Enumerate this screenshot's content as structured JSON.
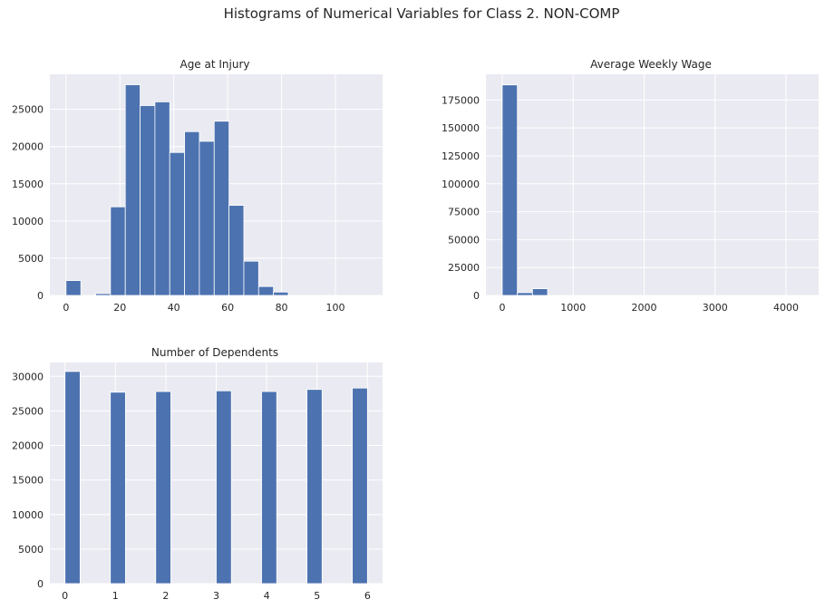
{
  "title": "Histograms of Numerical Variables for Class 2. NON-COMP",
  "colors": {
    "bar": "#4c72b0",
    "background": "#eaeaf2",
    "grid": "#ffffff"
  },
  "chart_data": [
    {
      "type": "bar",
      "title": "Age at Injury",
      "xlabel": "",
      "ylabel": "",
      "xlim": [
        -6,
        117.5
      ],
      "ylim": [
        0,
        29700
      ],
      "x_ticks": [
        0,
        20,
        40,
        60,
        80,
        100
      ],
      "y_ticks": [
        0,
        5000,
        10000,
        15000,
        20000,
        25000
      ],
      "grid": true,
      "bin_width": 5.5,
      "bin_starts": [
        0,
        5.5,
        11,
        16.5,
        22,
        27.5,
        33,
        38.5,
        44,
        49.5,
        55,
        60.5,
        66,
        71.5,
        77,
        82.5,
        88,
        93.5,
        99,
        104.5
      ],
      "values": [
        2000,
        0,
        250,
        11900,
        28300,
        25500,
        26000,
        19200,
        22000,
        20700,
        23400,
        12100,
        4600,
        1200,
        450,
        0,
        0,
        0,
        0,
        0
      ]
    },
    {
      "type": "bar",
      "title": "Average Weekly Wage",
      "xlabel": "",
      "ylabel": "",
      "xlim": [
        -230,
        4460
      ],
      "ylim": [
        0,
        198000
      ],
      "x_ticks": [
        0,
        1000,
        2000,
        3000,
        4000
      ],
      "y_ticks": [
        0,
        25000,
        50000,
        75000,
        100000,
        125000,
        150000,
        175000
      ],
      "grid": true,
      "bin_width": 213,
      "bin_starts": [
        0,
        213,
        426,
        639,
        852,
        1065,
        1278,
        1491,
        1704,
        1917,
        2130,
        2343,
        2556,
        2769,
        2982,
        3195,
        3408,
        3621,
        3834,
        4047
      ],
      "values": [
        188500,
        2500,
        6000,
        0,
        0,
        0,
        0,
        0,
        0,
        0,
        0,
        0,
        0,
        0,
        0,
        0,
        0,
        0,
        0,
        0
      ]
    },
    {
      "type": "bar",
      "title": "Number of Dependents",
      "xlabel": "",
      "ylabel": "",
      "xlim": [
        -0.3,
        6.3
      ],
      "ylim": [
        0,
        32000
      ],
      "x_ticks": [
        0,
        1,
        2,
        3,
        4,
        5,
        6
      ],
      "y_ticks": [
        0,
        5000,
        10000,
        15000,
        20000,
        25000,
        30000
      ],
      "grid": true,
      "bin_width": 0.3,
      "bin_starts": [
        0,
        0.3,
        0.6,
        0.9,
        1.2,
        1.5,
        1.8,
        2.1,
        2.4,
        2.7,
        3.0,
        3.3,
        3.6,
        3.9,
        4.2,
        4.5,
        4.8,
        5.1,
        5.4,
        5.7
      ],
      "values": [
        30700,
        0,
        0,
        27700,
        0,
        0,
        27800,
        0,
        0,
        0,
        27900,
        0,
        0,
        27800,
        0,
        0,
        28100,
        0,
        0,
        28300
      ]
    }
  ]
}
